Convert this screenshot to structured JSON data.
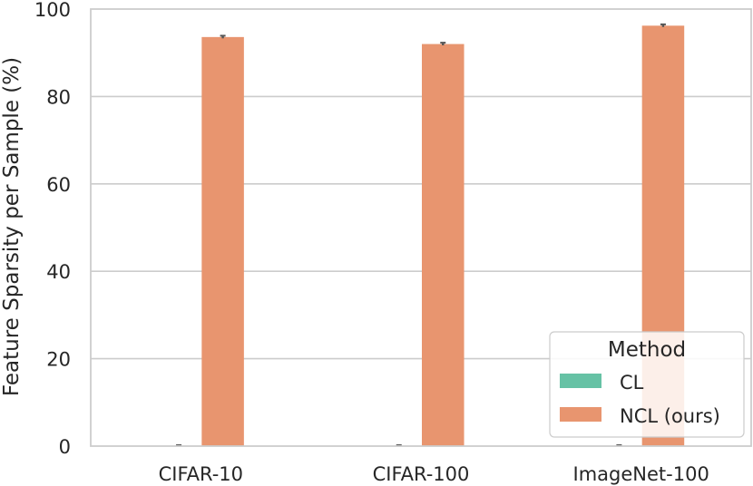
{
  "chart_data": {
    "type": "bar",
    "title": "",
    "xlabel": "",
    "ylabel": "Feature Sparsity per Sample (%)",
    "categories": [
      "CIFAR-10",
      "CIFAR-100",
      "ImageNet-100"
    ],
    "ylim": [
      0,
      100
    ],
    "yticks": [
      0,
      20,
      40,
      60,
      80,
      100
    ],
    "grid": "horizontal",
    "legend": {
      "title": "Method",
      "placement": "lower-right"
    },
    "series": [
      {
        "name": "CL",
        "color": "#66c2a5",
        "values": [
          0.1,
          0.1,
          0.1
        ],
        "errors": [
          0.1,
          0.1,
          0.1
        ]
      },
      {
        "name": "NCL (ours)",
        "color": "#e8956f",
        "values": [
          93.6,
          92.0,
          96.2
        ],
        "errors": [
          0.3,
          0.3,
          0.3
        ]
      }
    ],
    "colors": {
      "grid": "#cccccc",
      "frame": "#cccccc",
      "text": "#262626",
      "errorbar": "#555555"
    }
  }
}
